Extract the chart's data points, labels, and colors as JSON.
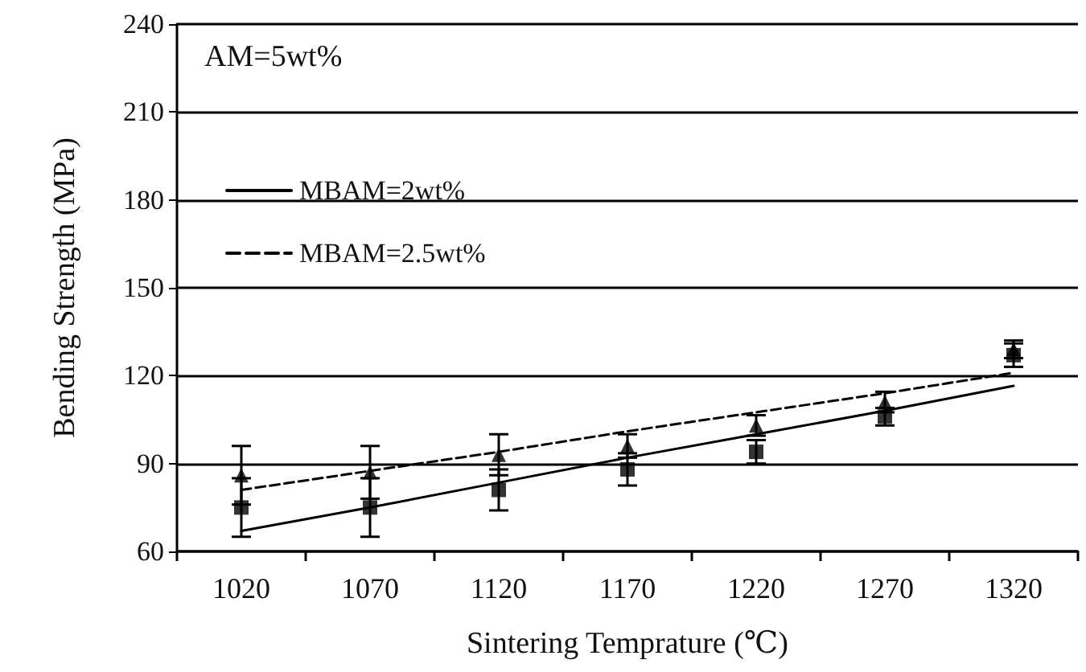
{
  "chart_data": {
    "type": "scatter",
    "xlabel": "Sintering Temprature (℃)",
    "ylabel": "Bending Strength (MPa)",
    "categories": [
      "1020",
      "1070",
      "1120",
      "1170",
      "1220",
      "1270",
      "1320"
    ],
    "ylim": [
      60,
      240
    ],
    "yticks": [
      60,
      90,
      120,
      150,
      180,
      210,
      240
    ],
    "grid": "y",
    "legend": "top left",
    "annotations": [
      "AM=5wt%"
    ],
    "series": [
      {
        "name": "MBAM=2wt%",
        "type": "line",
        "line_style": "solid",
        "marker": "none",
        "color": "#000000",
        "values": [
          67,
          75,
          83.5,
          92,
          100,
          108,
          116.5
        ]
      },
      {
        "name": "MBAM=2.5wt%",
        "type": "line",
        "line_style": "dashed",
        "marker": "none",
        "color": "#000000",
        "values": [
          81,
          87.5,
          94,
          101,
          107.5,
          114,
          121
        ]
      },
      {
        "marker": "square",
        "color": "#000000",
        "values": [
          75,
          75,
          81,
          88,
          94,
          106,
          127
        ],
        "errors": [
          10,
          10,
          7,
          5.5,
          4,
          3,
          4
        ]
      },
      {
        "marker": "triangle",
        "color": "#000000",
        "values": [
          86,
          87,
          93,
          96,
          103,
          111,
          129
        ],
        "errors": [
          10,
          9,
          7,
          4,
          3.5,
          3.5,
          3
        ]
      }
    ]
  }
}
